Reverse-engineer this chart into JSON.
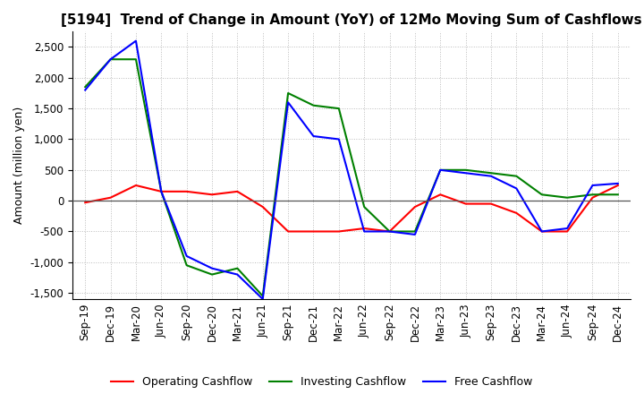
{
  "title": "[5194]  Trend of Change in Amount (YoY) of 12Mo Moving Sum of Cashflows",
  "ylabel": "Amount (million yen)",
  "x_labels": [
    "Sep-19",
    "Dec-19",
    "Mar-20",
    "Jun-20",
    "Sep-20",
    "Dec-20",
    "Mar-21",
    "Jun-21",
    "Sep-21",
    "Dec-21",
    "Mar-22",
    "Jun-22",
    "Sep-22",
    "Dec-22",
    "Mar-23",
    "Jun-23",
    "Sep-23",
    "Dec-23",
    "Mar-24",
    "Jun-24",
    "Sep-24",
    "Dec-24"
  ],
  "operating": [
    -30,
    50,
    250,
    150,
    150,
    100,
    150,
    -100,
    -500,
    -500,
    -500,
    -450,
    -500,
    -100,
    100,
    -50,
    -50,
    -200,
    -500,
    -500,
    50,
    250
  ],
  "investing": [
    1850,
    2300,
    2300,
    150,
    -1050,
    -1200,
    -1100,
    -1550,
    1750,
    1550,
    1500,
    -100,
    -500,
    -500,
    500,
    500,
    450,
    400,
    100,
    50,
    100,
    100
  ],
  "free": [
    1800,
    2300,
    2600,
    150,
    -900,
    -1100,
    -1200,
    -1600,
    1600,
    1050,
    1000,
    -500,
    -500,
    -550,
    500,
    450,
    400,
    200,
    -500,
    -450,
    250,
    280
  ],
  "ylim": [
    -1600,
    2750
  ],
  "yticks": [
    -1500,
    -1000,
    -500,
    0,
    500,
    1000,
    1500,
    2000,
    2500
  ],
  "operating_color": "#ff0000",
  "investing_color": "#008000",
  "free_color": "#0000ff",
  "grid_color": "#bbbbbb",
  "bg_color": "#ffffff",
  "title_fontsize": 11,
  "axis_fontsize": 9,
  "tick_fontsize": 8.5
}
